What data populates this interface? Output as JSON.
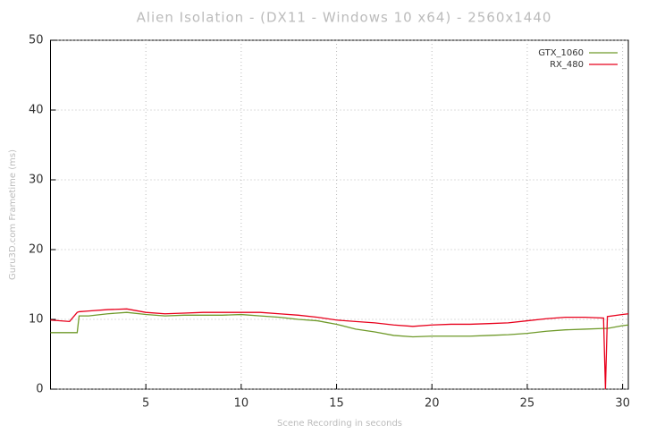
{
  "chart_data": {
    "type": "line",
    "title": "Alien Isolation - (DX11 - Windows 10 x64) - 2560x1440",
    "x_label": "Scene Recording in seconds",
    "y_label": "Guru3D.com Frametime (ms)",
    "x": [
      0,
      1,
      1.4,
      1.5,
      2,
      3,
      4,
      5,
      6,
      7,
      8,
      9,
      10,
      11,
      12,
      13,
      14,
      15,
      16,
      17,
      18,
      19,
      20,
      21,
      22,
      23,
      24,
      25,
      26,
      27,
      28,
      29,
      29.1,
      29.2,
      30,
      30.3
    ],
    "series": [
      {
        "name": "GTX_1060",
        "color": "#6f9a2a",
        "values": [
          8.1,
          8.1,
          8.1,
          10.5,
          10.5,
          10.8,
          11,
          10.7,
          10.5,
          10.6,
          10.6,
          10.6,
          10.7,
          10.5,
          10.3,
          10,
          9.8,
          9.3,
          8.6,
          8.2,
          7.7,
          7.5,
          7.6,
          7.6,
          7.6,
          7.7,
          7.8,
          8,
          8.3,
          8.5,
          8.6,
          8.7,
          8.7,
          8.7,
          9.1,
          9.2
        ]
      },
      {
        "name": "RX_480",
        "color": "#e8001c",
        "values": [
          9.9,
          9.7,
          11,
          11.1,
          11.2,
          11.4,
          11.5,
          11,
          10.8,
          10.9,
          11,
          11,
          11,
          11,
          10.8,
          10.6,
          10.3,
          9.9,
          9.7,
          9.5,
          9.2,
          9,
          9.2,
          9.3,
          9.3,
          9.4,
          9.5,
          9.8,
          10.1,
          10.3,
          10.3,
          10.2,
          0,
          10.4,
          10.7,
          10.8
        ]
      }
    ],
    "xlim": [
      0,
      30.3
    ],
    "ylim": [
      0,
      50
    ],
    "xticks": [
      5,
      10,
      15,
      20,
      25,
      30
    ],
    "yticks": [
      0,
      10,
      20,
      30,
      40,
      50
    ],
    "grid": true,
    "legend": "upper right"
  }
}
